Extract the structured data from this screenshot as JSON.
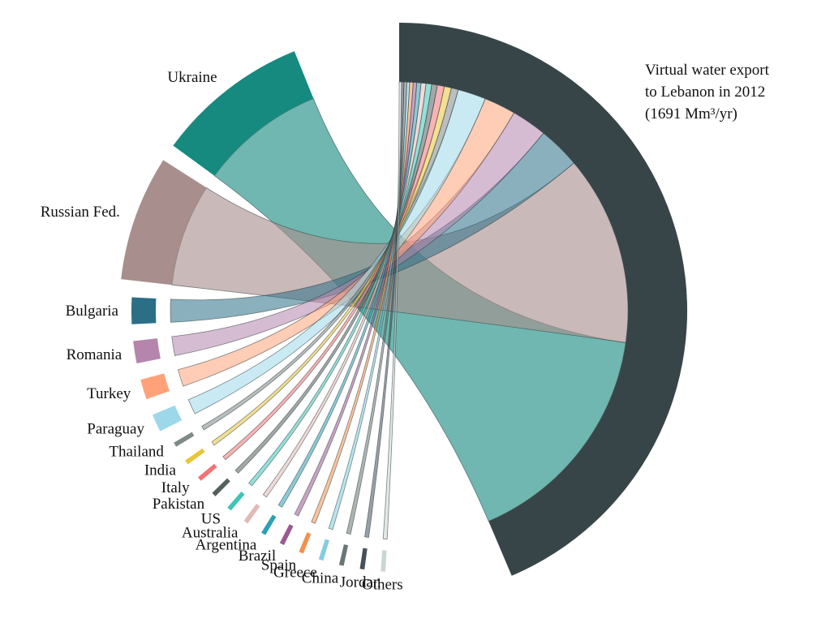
{
  "chart_data": {
    "type": "chord",
    "title_lines": [
      "Virtual water export",
      "to Lebanon in 2012",
      "(1691 Mm³/yr)"
    ],
    "target": {
      "name": "Lebanon",
      "color": "#384548"
    },
    "flows": [
      {
        "name": "Ukraine",
        "share": 0.33,
        "color": "#178a80"
      },
      {
        "name": "Russian Fed.",
        "share": 0.27,
        "color": "#a88e8c"
      },
      {
        "name": "Bulgaria",
        "share": 0.06,
        "color": "#2a6f86"
      },
      {
        "name": "Romania",
        "share": 0.05,
        "color": "#b585ad"
      },
      {
        "name": "Turkey",
        "share": 0.045,
        "color": "#ffa27a"
      },
      {
        "name": "Paraguay",
        "share": 0.04,
        "color": "#9dd8ea"
      },
      {
        "name": "Thailand",
        "share": 0.01,
        "color": "#7e8a88"
      },
      {
        "name": "India",
        "share": 0.01,
        "color": "#e8c53a"
      },
      {
        "name": "Italy",
        "share": 0.01,
        "color": "#f07575"
      },
      {
        "name": "Pakistan",
        "share": 0.008,
        "color": "#55615f"
      },
      {
        "name": "US",
        "share": 0.008,
        "color": "#3ec4b9"
      },
      {
        "name": "Australia",
        "share": 0.007,
        "color": "#e2b9b6"
      },
      {
        "name": "Argentina",
        "share": 0.006,
        "color": "#2e9fb6"
      },
      {
        "name": "Brazil",
        "share": 0.005,
        "color": "#9a5a92"
      },
      {
        "name": "Spain",
        "share": 0.005,
        "color": "#f2914c"
      },
      {
        "name": "Greece",
        "share": 0.004,
        "color": "#82cde0"
      },
      {
        "name": "China",
        "share": 0.004,
        "color": "#6a7676"
      },
      {
        "name": "Jordan",
        "share": 0.003,
        "color": "#45505c"
      },
      {
        "name": "Others",
        "share": 0.003,
        "color": "#c9d7d4"
      }
    ]
  }
}
